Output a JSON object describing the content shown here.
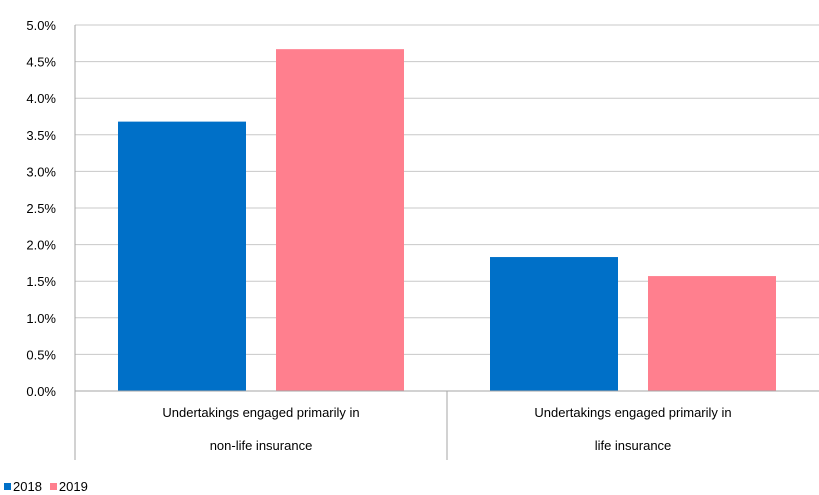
{
  "chart_data": {
    "type": "bar",
    "title": "",
    "xlabel": "",
    "ylabel": "",
    "ylim": [
      0,
      5.0
    ],
    "y_ticks": [
      "0.0%",
      "0.5%",
      "1.0%",
      "1.5%",
      "2.0%",
      "2.5%",
      "3.0%",
      "3.5%",
      "4.0%",
      "4.5%",
      "5.0%"
    ],
    "y_unit": "%",
    "grid": true,
    "legend_position": "bottom-left",
    "categories": [
      [
        "Undertakings engaged primarily in",
        "non-life insurance"
      ],
      [
        "Undertakings engaged primarily in",
        "life insurance"
      ]
    ],
    "series": [
      {
        "name": "2018",
        "color": "#0070C8",
        "values": [
          3.68,
          1.83
        ]
      },
      {
        "name": "2019",
        "color": "#FF7F8E",
        "values": [
          4.67,
          1.57
        ]
      }
    ]
  }
}
